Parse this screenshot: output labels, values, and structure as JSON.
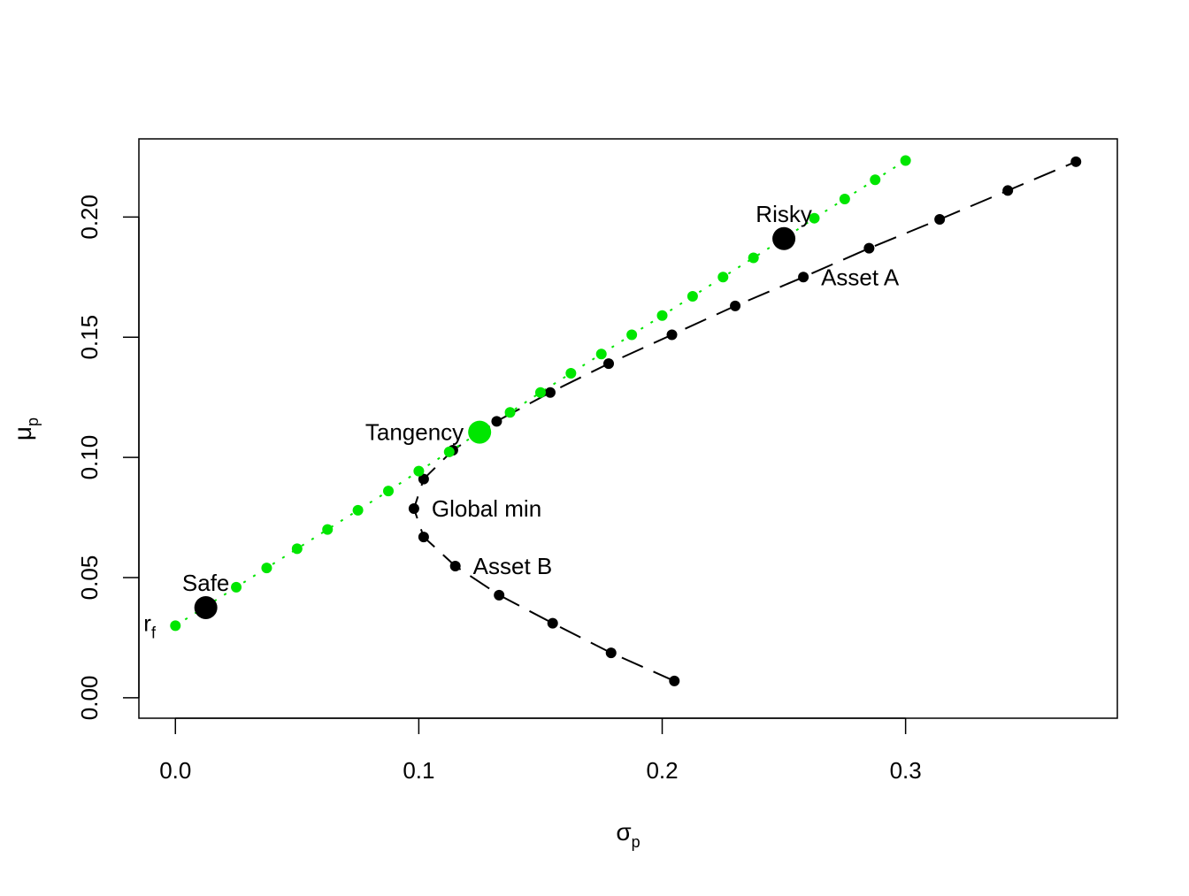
{
  "chart_data": {
    "type": "scatter",
    "title": "",
    "xlabel": "σ",
    "xlabel_sub": "p",
    "ylabel": "μ",
    "ylabel_sub": "p",
    "xlim": [
      -0.015,
      0.387
    ],
    "ylim": [
      -0.0085,
      0.2325
    ],
    "xticks": [
      {
        "value": 0.0,
        "label": "0.0"
      },
      {
        "value": 0.1,
        "label": "0.1"
      },
      {
        "value": 0.2,
        "label": "0.2"
      },
      {
        "value": 0.3,
        "label": "0.3"
      }
    ],
    "yticks": [
      {
        "value": 0.0,
        "label": "0.00"
      },
      {
        "value": 0.05,
        "label": "0.05"
      },
      {
        "value": 0.1,
        "label": "0.10"
      },
      {
        "value": 0.15,
        "label": "0.15"
      },
      {
        "value": 0.2,
        "label": "0.20"
      }
    ],
    "grid": false,
    "legend": "none",
    "series": [
      {
        "color": "#000000",
        "line_style": "dashed",
        "x": [
          0.205,
          0.179,
          0.155,
          0.133,
          0.115,
          0.102,
          0.098,
          0.102,
          0.114,
          0.132,
          0.154,
          0.178,
          0.204,
          0.23,
          0.258,
          0.285,
          0.314,
          0.342,
          0.37
        ],
        "y": [
          0.007,
          0.0187,
          0.031,
          0.0427,
          0.0548,
          0.0669,
          0.0787,
          0.091,
          0.103,
          0.115,
          0.127,
          0.139,
          0.151,
          0.163,
          0.175,
          0.187,
          0.199,
          0.211,
          0.223
        ]
      },
      {
        "color": "#00e600",
        "line_style": "dotted",
        "x": [
          0.0,
          0.025,
          0.0375,
          0.05,
          0.0625,
          0.075,
          0.0875,
          0.1,
          0.1125,
          0.1375,
          0.15,
          0.1625,
          0.175,
          0.1875,
          0.2,
          0.2125,
          0.225,
          0.2375,
          0.25,
          0.2625,
          0.275,
          0.2875,
          0.3
        ],
        "y": [
          0.03,
          0.046,
          0.054,
          0.062,
          0.07,
          0.078,
          0.086,
          0.0943,
          0.1023,
          0.1187,
          0.127,
          0.135,
          0.143,
          0.151,
          0.159,
          0.167,
          0.175,
          0.183,
          0.191,
          0.1995,
          0.2075,
          0.2155,
          0.2235
        ]
      }
    ],
    "highlight_points": [
      {
        "label": "Tangency",
        "x": 0.125,
        "y": 0.1105,
        "color": "#00e600",
        "label_pos": "left"
      },
      {
        "label": "Risky",
        "x": 0.25,
        "y": 0.191,
        "color": "#000000",
        "label_pos": "above"
      },
      {
        "label": "Safe",
        "x": 0.0125,
        "y": 0.0375,
        "color": "#000000",
        "label_pos": "above"
      }
    ],
    "annotations": [
      {
        "text": "Global min",
        "x": 0.098,
        "y": 0.0787,
        "pos": "right"
      },
      {
        "text": "Asset A",
        "x": 0.258,
        "y": 0.175,
        "pos": "right"
      },
      {
        "text": "Asset B",
        "x": 0.115,
        "y": 0.0548,
        "pos": "right"
      }
    ],
    "rf_label": {
      "text": "r",
      "sub": "f",
      "x": 0.0,
      "y": 0.03
    }
  }
}
